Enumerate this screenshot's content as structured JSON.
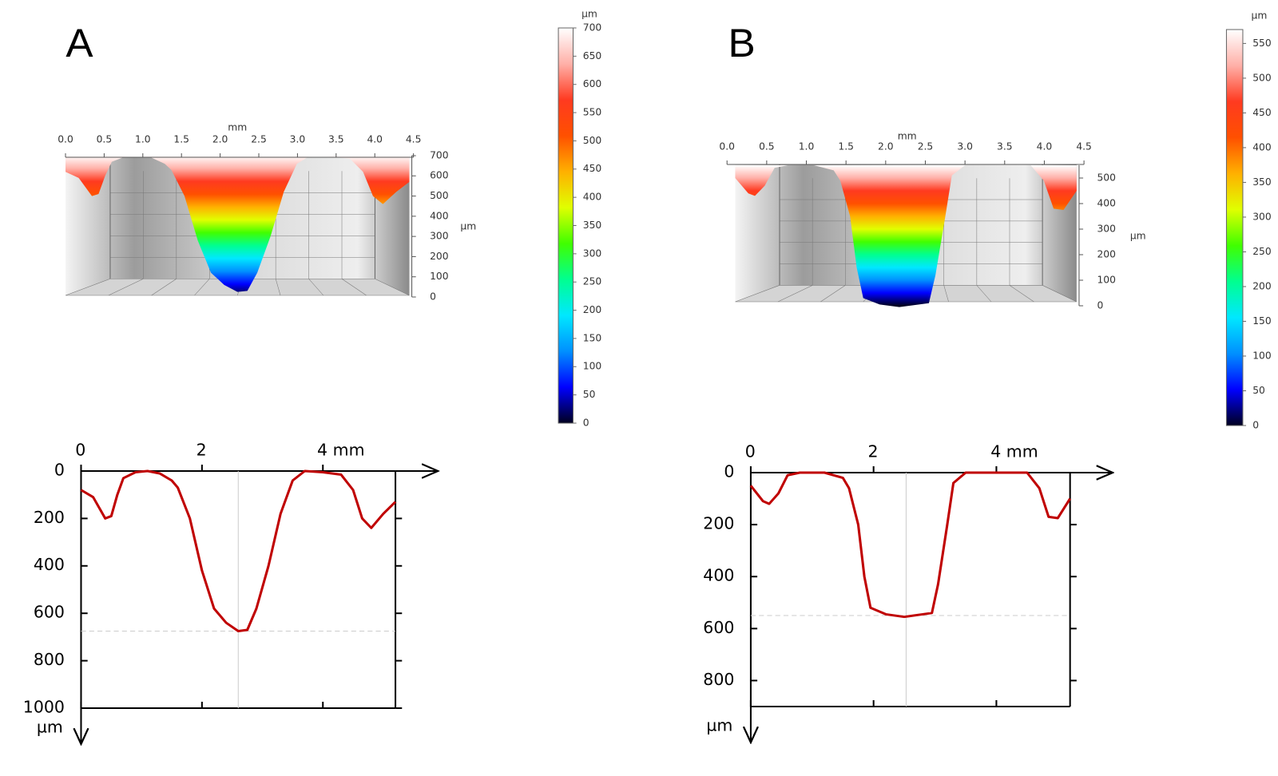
{
  "chart_data": [
    {
      "type": "surface3d",
      "panel": "A",
      "x_label": "mm",
      "z_label": "µm",
      "xlim": [
        0,
        4.5
      ],
      "xticks": [
        {
          "value": 0,
          "label": "0.0"
        },
        0.5,
        {
          "value": 1,
          "label": "1.0"
        },
        1.5,
        {
          "value": 2,
          "label": "2.0"
        },
        2.5,
        {
          "value": 3,
          "label": "3.0"
        },
        3.5,
        {
          "value": 4,
          "label": "4.0"
        },
        4.5
      ],
      "zlim": [
        0,
        700
      ],
      "zticks": [
        0,
        100,
        200,
        300,
        400,
        500,
        600,
        700
      ]
    },
    {
      "type": "colorbar",
      "label": "µm",
      "ylim": [
        0,
        700
      ],
      "yticks": [
        0,
        50,
        100,
        150,
        200,
        250,
        300,
        350,
        400,
        450,
        500,
        550,
        600,
        650,
        700
      ],
      "colors": [
        "#000020",
        "#0000ff",
        "#0090ff",
        "#00e8ff",
        "#00ff90",
        "#40ff00",
        "#e0ff00",
        "#ffb000",
        "#ff5000",
        "#ff3a20",
        "#ffb0a8",
        "#ffffff"
      ]
    },
    {
      "type": "line",
      "xlim": [
        0,
        5.2
      ],
      "ylim": [
        0,
        1000
      ],
      "xticks": [
        0,
        2,
        {
          "value": 4,
          "label": "4 mm"
        }
      ],
      "yticks": [
        0,
        200,
        400,
        600,
        800,
        1000
      ],
      "y_label": "µm",
      "reference": {
        "x": 2.6,
        "y": 675
      },
      "series": [
        {
          "color": "#c00000",
          "x": [
            0,
            0.2,
            0.4,
            0.5,
            0.6,
            0.7,
            0.9,
            1.1,
            1.3,
            1.5,
            1.6,
            1.8,
            2.0,
            2.2,
            2.4,
            2.6,
            2.75,
            2.9,
            3.1,
            3.3,
            3.5,
            3.7,
            4.0,
            4.3,
            4.5,
            4.65,
            4.8,
            5.0,
            5.2
          ],
          "values": [
            80,
            110,
            200,
            190,
            100,
            30,
            5,
            0,
            10,
            40,
            70,
            200,
            420,
            580,
            640,
            675,
            670,
            580,
            400,
            180,
            40,
            0,
            5,
            15,
            80,
            200,
            240,
            180,
            130
          ]
        }
      ]
    },
    {
      "type": "surface3d",
      "panel": "B",
      "x_label": "mm",
      "z_label": "µm",
      "xlim": [
        0,
        4.5
      ],
      "xticks": [
        {
          "value": 0,
          "label": "0.0"
        },
        0.5,
        {
          "value": 1,
          "label": "1.0"
        },
        1.5,
        {
          "value": 2,
          "label": "2.0"
        },
        2.5,
        {
          "value": 3,
          "label": "3.0"
        },
        3.5,
        {
          "value": 4,
          "label": "4.0"
        },
        4.5
      ],
      "zlim": [
        0,
        550
      ],
      "zticks": [
        0,
        100,
        200,
        300,
        400,
        500
      ]
    },
    {
      "type": "colorbar",
      "label": "µm",
      "ylim": [
        0,
        570
      ],
      "yticks": [
        0,
        50,
        100,
        150,
        200,
        250,
        300,
        350,
        400,
        450,
        500,
        550
      ],
      "colors": [
        "#000020",
        "#0000ff",
        "#0090ff",
        "#00e8ff",
        "#00ff90",
        "#40ff00",
        "#e0ff00",
        "#ffb000",
        "#ff5000",
        "#ff3a20",
        "#ffb0a8",
        "#ffffff"
      ]
    },
    {
      "type": "line",
      "xlim": [
        0,
        5.2
      ],
      "ylim": [
        0,
        900
      ],
      "xticks": [
        0,
        2,
        {
          "value": 4,
          "label": "4 mm"
        }
      ],
      "yticks": [
        0,
        200,
        400,
        600,
        800
      ],
      "y_label": "µm",
      "reference": {
        "x": 2.53,
        "y": 550
      },
      "series": [
        {
          "color": "#c00000",
          "x": [
            0,
            0.2,
            0.3,
            0.45,
            0.6,
            0.8,
            1.2,
            1.5,
            1.6,
            1.75,
            1.85,
            1.95,
            2.2,
            2.5,
            2.8,
            2.95,
            3.05,
            3.2,
            3.3,
            3.5,
            4.5,
            4.7,
            4.85,
            5.0,
            5.2
          ],
          "values": [
            50,
            110,
            120,
            80,
            10,
            0,
            0,
            20,
            60,
            200,
            400,
            520,
            545,
            555,
            545,
            540,
            430,
            200,
            40,
            0,
            0,
            60,
            170,
            175,
            100
          ]
        }
      ]
    }
  ]
}
